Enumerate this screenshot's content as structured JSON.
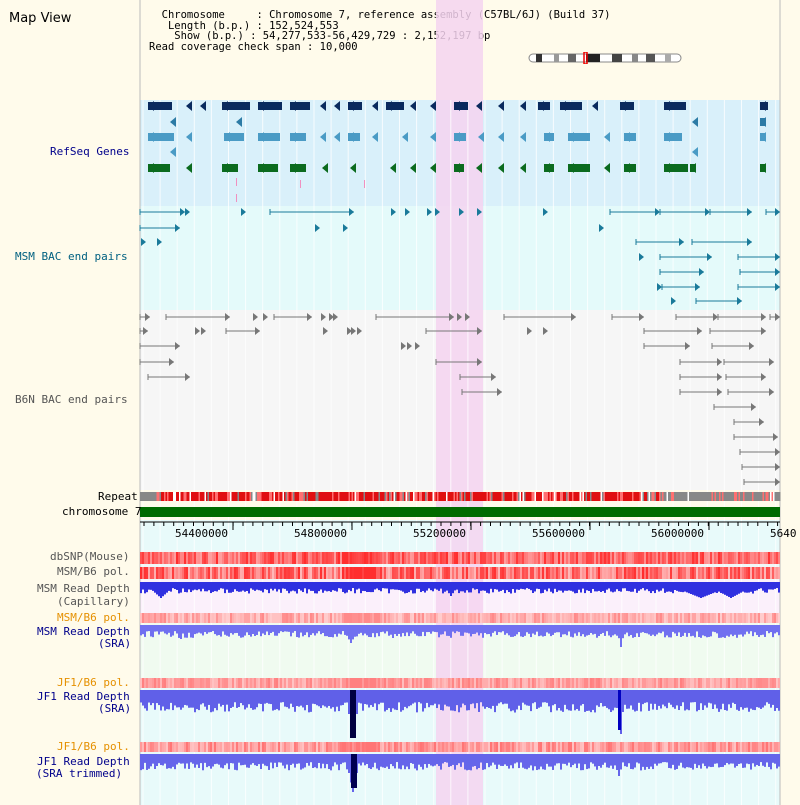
{
  "header": {
    "title": "Map View",
    "info_lines": [
      "  Chromosome     : Chromosome 7, reference assembly (C57BL/6J) (Build 37)",
      "   Length (b.p.) : 152,524,553",
      "    Show (b.p.) : 54,277,533-56,429,729 : 2,152,197 bp",
      "Read coverage check span : 10,000"
    ]
  },
  "tracks": {
    "refseq": "RefSeq Genes",
    "msm_bac": "MSM BAC end pairs",
    "b6n_bac": "B6N BAC end pairs",
    "repeat": "Repeat",
    "chromosome": "chromosome 7",
    "dbsnp": "dbSNP(Mouse)",
    "msm_b6_pol_1": "MSM/B6 pol.",
    "msm_depth_cap_1": "MSM Read Depth",
    "msm_depth_cap_2": "(Capillary)",
    "msm_b6_pol_2": "MSM/B6 pol.",
    "msm_depth_sra_1": "MSM Read Depth",
    "msm_depth_sra_2": "(SRA)",
    "jf1_b6_pol_1": "JF1/B6 pol.",
    "jf1_depth_sra_1": "JF1 Read Depth",
    "jf1_depth_sra_2": "(SRA)",
    "jf1_b6_pol_2": "JF1/B6 pol.",
    "jf1_depth_trim_1": "JF1 Read Depth",
    "jf1_depth_trim_2": "(SRA trimmed)"
  },
  "axis": {
    "ticks": [
      "54400000",
      "54800000",
      "55200000",
      "55600000",
      "56000000",
      "5640"
    ]
  },
  "colors": {
    "page_bg": "#fffbeb",
    "refseq_bg": "#d9f0fa",
    "msm_bg": "#e4fafa",
    "b6n_bg": "#f4f4f4",
    "highlight": "#f5d3f0",
    "chrom_bar": "#006b00",
    "depth_blue": "#0000e0",
    "pol_red": "#ff3030",
    "label_blue": "#00008b",
    "label_teal": "#006080",
    "label_orange": "#e59000",
    "label_gray": "#555555"
  }
}
